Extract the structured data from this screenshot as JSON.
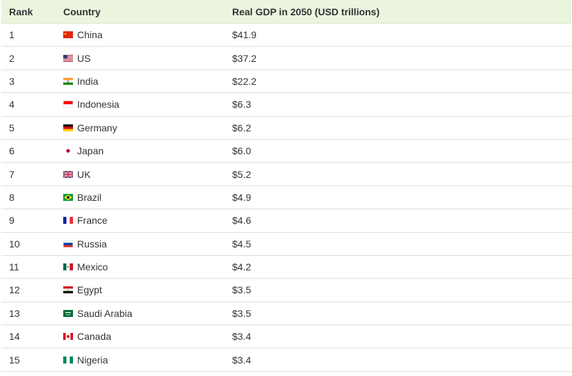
{
  "headers": {
    "rank": "Rank",
    "country": "Country",
    "gdp": "Real GDP in 2050 (USD trillions)"
  },
  "rows": [
    {
      "rank": "1",
      "country": "China",
      "gdp": "$41.9",
      "flag": "china-flag-icon"
    },
    {
      "rank": "2",
      "country": "US",
      "gdp": "$37.2",
      "flag": "us-flag-icon"
    },
    {
      "rank": "3",
      "country": "India",
      "gdp": "$22.2",
      "flag": "india-flag-icon"
    },
    {
      "rank": "4",
      "country": "Indonesia",
      "gdp": "$6.3",
      "flag": "indonesia-flag-icon"
    },
    {
      "rank": "5",
      "country": "Germany",
      "gdp": "$6.2",
      "flag": "germany-flag-icon"
    },
    {
      "rank": "6",
      "country": "Japan",
      "gdp": "$6.0",
      "flag": "japan-flag-icon"
    },
    {
      "rank": "7",
      "country": "UK",
      "gdp": "$5.2",
      "flag": "uk-flag-icon"
    },
    {
      "rank": "8",
      "country": "Brazil",
      "gdp": "$4.9",
      "flag": "brazil-flag-icon"
    },
    {
      "rank": "9",
      "country": "France",
      "gdp": "$4.6",
      "flag": "france-flag-icon"
    },
    {
      "rank": "10",
      "country": "Russia",
      "gdp": "$4.5",
      "flag": "russia-flag-icon"
    },
    {
      "rank": "11",
      "country": "Mexico",
      "gdp": "$4.2",
      "flag": "mexico-flag-icon"
    },
    {
      "rank": "12",
      "country": "Egypt",
      "gdp": "$3.5",
      "flag": "egypt-flag-icon"
    },
    {
      "rank": "13",
      "country": "Saudi Arabia",
      "gdp": "$3.5",
      "flag": "saudi-arabia-flag-icon"
    },
    {
      "rank": "14",
      "country": "Canada",
      "gdp": "$3.4",
      "flag": "canada-flag-icon"
    },
    {
      "rank": "15",
      "country": "Nigeria",
      "gdp": "$3.4",
      "flag": "nigeria-flag-icon"
    }
  ],
  "colors": {
    "header_bg": "#eaf4df",
    "row_border": "#dedede",
    "text": "#333333"
  }
}
